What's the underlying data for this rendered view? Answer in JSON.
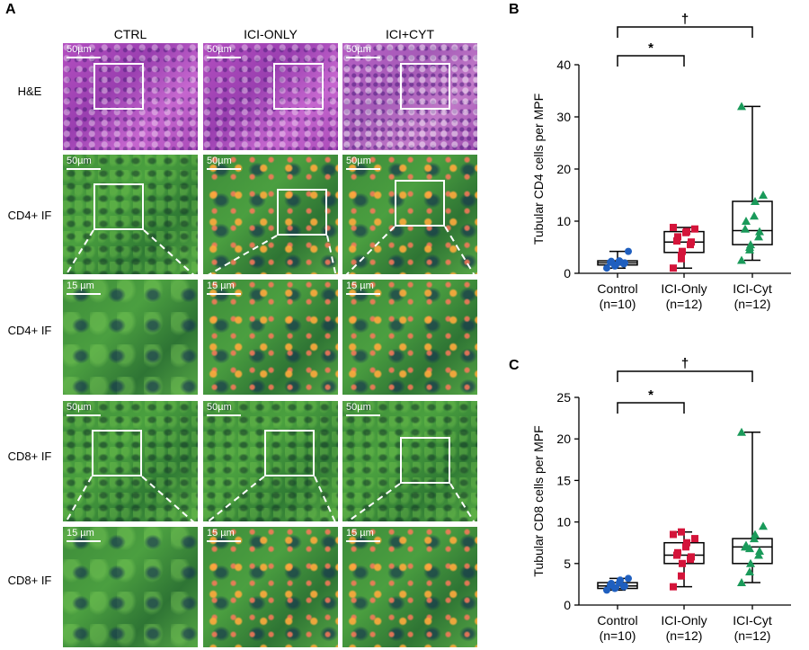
{
  "panels": {
    "a_letter": "A",
    "b_letter": "B",
    "c_letter": "C"
  },
  "columns": [
    "CTRL",
    "ICI-ONLY",
    "ICI+CYT"
  ],
  "rows": [
    {
      "label": "H&E",
      "scale": "50µm"
    },
    {
      "label": "CD4+ IF",
      "scale": "50µm"
    },
    {
      "label": "CD4+ IF",
      "scale": "15 µm"
    },
    {
      "label": "CD8+ IF",
      "scale": "50µm"
    },
    {
      "label": "CD8+ IF",
      "scale": "15 µm"
    }
  ],
  "chart_data": [
    {
      "type": "box",
      "ylabel": "Tubular CD4 cells per MPF",
      "ylim": [
        0,
        40
      ],
      "yticks": [
        0,
        10,
        20,
        30,
        40
      ],
      "categories": [
        "Control",
        "ICI-Only",
        "ICI-Cyt"
      ],
      "sublabels": [
        "(n=10)",
        "(n=12)",
        "(n=12)"
      ],
      "colors": [
        "#1f5fbf",
        "#d4143a",
        "#1a9a5a"
      ],
      "markers": [
        "circle",
        "square",
        "triangle"
      ],
      "boxes": [
        {
          "min": 1.0,
          "q1": 1.6,
          "median": 2.0,
          "q3": 2.4,
          "max": 4.2
        },
        {
          "min": 1.0,
          "q1": 4.0,
          "median": 6.0,
          "q3": 8.0,
          "max": 8.8
        },
        {
          "min": 2.5,
          "q1": 5.5,
          "median": 8.2,
          "q3": 13.8,
          "max": 32.0
        }
      ],
      "points": [
        [
          1.0,
          1.4,
          1.6,
          1.8,
          2.0,
          2.1,
          2.3,
          2.4,
          2.2,
          4.2
        ],
        [
          1.0,
          3.4,
          4.2,
          5.5,
          6.0,
          6.2,
          7.0,
          7.8,
          8.0,
          8.5,
          8.8,
          2.8
        ],
        [
          2.5,
          4.5,
          5.5,
          7.0,
          8.0,
          8.5,
          10.0,
          11.0,
          13.8,
          15.0,
          32.0,
          5.0
        ]
      ],
      "brackets": [
        {
          "from": 0,
          "to": 1,
          "label": "*"
        },
        {
          "from": 0,
          "to": 2,
          "label": "†"
        }
      ]
    },
    {
      "type": "box",
      "ylabel": "Tubular CD8 cells per MPF",
      "ylim": [
        0,
        25
      ],
      "yticks": [
        0,
        5,
        10,
        15,
        20,
        25
      ],
      "categories": [
        "Control",
        "ICI-Only",
        "ICI-Cyt"
      ],
      "sublabels": [
        "(n=10)",
        "(n=12)",
        "(n=12)"
      ],
      "colors": [
        "#1f5fbf",
        "#d4143a",
        "#1a9a5a"
      ],
      "markers": [
        "circle",
        "square",
        "triangle"
      ],
      "boxes": [
        {
          "min": 1.8,
          "q1": 2.0,
          "median": 2.3,
          "q3": 2.7,
          "max": 3.2
        },
        {
          "min": 2.2,
          "q1": 5.0,
          "median": 6.0,
          "q3": 7.5,
          "max": 8.8
        },
        {
          "min": 2.7,
          "q1": 5.0,
          "median": 7.0,
          "q3": 8.0,
          "max": 20.8
        }
      ],
      "points": [
        [
          1.8,
          2.0,
          2.1,
          2.2,
          2.3,
          2.4,
          2.6,
          2.7,
          3.0,
          3.2
        ],
        [
          2.2,
          3.5,
          5.0,
          5.5,
          5.8,
          6.0,
          6.3,
          7.0,
          7.5,
          8.0,
          8.5,
          8.8
        ],
        [
          2.7,
          4.0,
          5.0,
          6.0,
          6.5,
          7.0,
          7.2,
          8.0,
          8.5,
          9.5,
          20.8,
          6.8
        ]
      ],
      "brackets": [
        {
          "from": 0,
          "to": 1,
          "label": "*"
        },
        {
          "from": 0,
          "to": 2,
          "label": "†"
        }
      ]
    }
  ]
}
